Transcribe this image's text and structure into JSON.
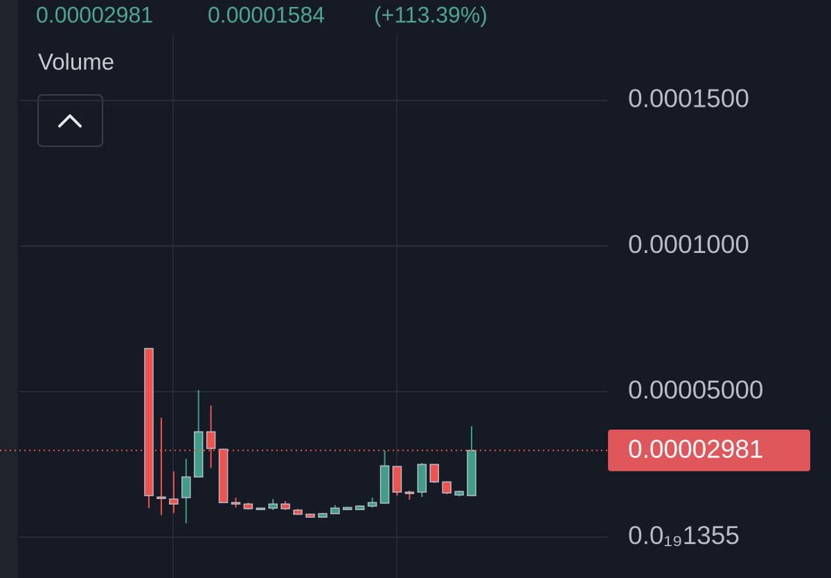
{
  "chart_data": {
    "type": "candlestick",
    "last_price": 2.981e-05,
    "change": 1.584e-05,
    "change_label": "(+113.39%)",
    "volume_label": "Volume",
    "up_color": "#3f9e87",
    "down_color": "#ef5350",
    "grid": true,
    "ylim": [
      -1.4e-05,
      0.0001845
    ],
    "yticks": [
      {
        "value": 0.00015,
        "label": "0.0001500"
      },
      {
        "value": 0.0001,
        "label": "0.0001000"
      },
      {
        "value": 5e-05,
        "label": "0.00005000"
      },
      {
        "value": 1.355e-20,
        "label": "0.0₁₉1355"
      }
    ],
    "open": [
      6.48e-05,
      1.38e-05,
      1.31e-05,
      1.36e-05,
      2.07e-05,
      3.62e-05,
      3.02e-05,
      1.19e-05,
      1.14e-05,
      9.5e-06,
      1e-05,
      1.14e-05,
      9.3e-06,
      7.9e-06,
      6.9e-06,
      8.1e-06,
      9.5e-06,
      9.5e-06,
      1.07e-05,
      1.17e-05,
      2.43e-05,
      1.55e-05,
      1.55e-05,
      2.5e-05,
      1.9e-05,
      1.45e-05,
      1.43e-05
    ],
    "high": [
      6.48e-05,
      4.1e-05,
      2.26e-05,
      2.69e-05,
      5.05e-05,
      4.52e-05,
      3.05e-05,
      1.36e-05,
      1.19e-05,
      1.02e-05,
      1.31e-05,
      1.24e-05,
      9.8e-06,
      8.1e-06,
      8.3e-06,
      1.1e-05,
      1.05e-05,
      1.1e-05,
      1.36e-05,
      2.98e-05,
      2.43e-05,
      1.6e-05,
      2.55e-05,
      2.5e-05,
      1.9e-05,
      1.6e-05,
      3.81e-05
    ],
    "low": [
      1e-05,
      7.6e-06,
      8.3e-06,
      4.8e-06,
      2.07e-05,
      2.38e-05,
      1.19e-05,
      1.02e-05,
      9.5e-06,
      9.3e-06,
      9.3e-06,
      9.3e-06,
      7.6e-06,
      6.7e-06,
      6.7e-06,
      7.9e-06,
      9.3e-06,
      9.3e-06,
      1.02e-05,
      1.17e-05,
      1.43e-05,
      1.29e-05,
      1.38e-05,
      1.86e-05,
      1.48e-05,
      1.4e-05,
      1.43e-05
    ],
    "close": [
      1.43e-05,
      1.33e-05,
      1.14e-05,
      2.07e-05,
      3.62e-05,
      3.05e-05,
      1.19e-05,
      1.14e-05,
      9.8e-06,
      1e-05,
      1.14e-05,
      9.8e-06,
      7.9e-06,
      6.9e-06,
      8.1e-06,
      1e-05,
      1.02e-05,
      1.07e-05,
      1.19e-05,
      2.45e-05,
      1.55e-05,
      1.5e-05,
      2.5e-05,
      1.9e-05,
      1.52e-05,
      1.57e-05,
      2.981e-05
    ]
  }
}
